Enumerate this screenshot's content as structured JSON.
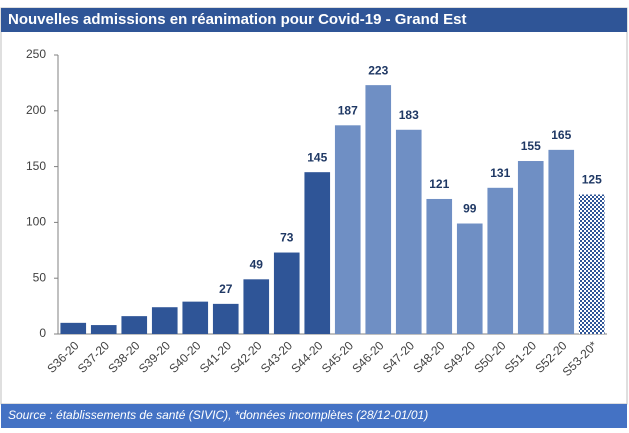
{
  "chart_data": {
    "type": "bar",
    "title": "Nouvelles admissions en réanimation pour Covid-19 - Grand Est",
    "source": "Source : établissements de santé (SIVIC), *données incomplètes (28/12-01/01)",
    "categories": [
      "S36-20",
      "S37-20",
      "S38-20",
      "S39-20",
      "S40-20",
      "S41-20",
      "S42-20",
      "S43-20",
      "S44-20",
      "S45-20",
      "S46-20",
      "S47-20",
      "S48-20",
      "S49-20",
      "S50-20",
      "S51-20",
      "S52-20",
      "S53-20*"
    ],
    "values": [
      10,
      8,
      16,
      24,
      29,
      27,
      49,
      73,
      145,
      187,
      223,
      183,
      121,
      99,
      131,
      155,
      165,
      125
    ],
    "value_labels": [
      null,
      null,
      null,
      null,
      null,
      "27",
      "49",
      "73",
      "145",
      "187",
      "223",
      "183",
      "121",
      "99",
      "131",
      "155",
      "165",
      "125"
    ],
    "colors": [
      "#2f5597",
      "#2f5597",
      "#2f5597",
      "#2f5597",
      "#2f5597",
      "#2f5597",
      "#2f5597",
      "#2f5597",
      "#2f5597",
      "#6f8fc4",
      "#6f8fc4",
      "#6f8fc4",
      "#6f8fc4",
      "#6f8fc4",
      "#6f8fc4",
      "#6f8fc4",
      "#6f8fc4",
      "#2f5597"
    ],
    "fill_styles": [
      "solid",
      "solid",
      "solid",
      "solid",
      "solid",
      "solid",
      "solid",
      "solid",
      "solid",
      "solid",
      "solid",
      "solid",
      "solid",
      "solid",
      "solid",
      "solid",
      "solid",
      "checkered"
    ],
    "ylim": [
      0,
      250
    ],
    "yticks": [
      0,
      50,
      100,
      150,
      200,
      250
    ],
    "grid": false
  }
}
